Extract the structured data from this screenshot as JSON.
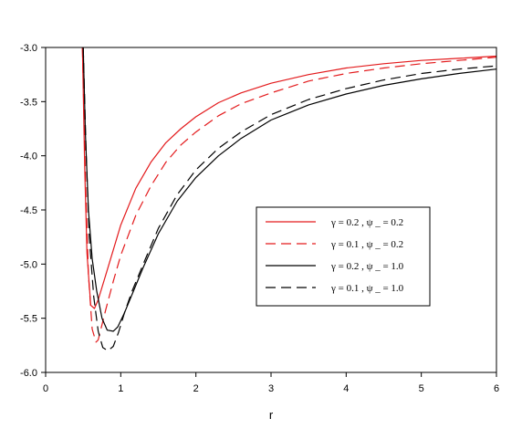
{
  "chart_data": {
    "type": "line",
    "title": "",
    "xlabel": "r",
    "ylabel": "",
    "xlim": [
      0,
      6
    ],
    "ylim": [
      -6.0,
      -3.0
    ],
    "xticks": [
      0,
      1,
      2,
      3,
      4,
      5,
      6
    ],
    "xtick_labels": [
      "0",
      "1",
      "2",
      "3",
      "4",
      "5",
      "6"
    ],
    "yticks": [
      -6.0,
      -5.5,
      -5.0,
      -4.5,
      -4.0,
      -3.5,
      -3.0
    ],
    "ytick_labels": [
      "-6.0",
      "-5.5",
      "-5.0",
      "-4.5",
      "-4.0",
      "-3.5",
      "-3.0"
    ],
    "grid": false,
    "legend_position": "center-right",
    "series": [
      {
        "name": "γ = 0.2 , ψ _ = 0.2",
        "color": "#e31a1c",
        "dash": "solid",
        "x": [
          0.49,
          0.52,
          0.55,
          0.6,
          0.65,
          0.7,
          0.8,
          0.9,
          1.0,
          1.2,
          1.4,
          1.6,
          1.8,
          2.0,
          2.3,
          2.6,
          3.0,
          3.5,
          4.0,
          4.5,
          5.0,
          5.5,
          6.0
        ],
        "y": [
          -3.0,
          -4.1,
          -4.9,
          -5.38,
          -5.41,
          -5.33,
          -5.1,
          -4.87,
          -4.64,
          -4.3,
          -4.06,
          -3.88,
          -3.75,
          -3.64,
          -3.51,
          -3.42,
          -3.33,
          -3.25,
          -3.19,
          -3.15,
          -3.12,
          -3.1,
          -3.08
        ]
      },
      {
        "name": "γ = 0.1 , ψ _ = 0.2",
        "color": "#e31a1c",
        "dash": "dashed",
        "x": [
          0.49,
          0.53,
          0.57,
          0.62,
          0.67,
          0.7,
          0.8,
          0.9,
          1.0,
          1.2,
          1.4,
          1.6,
          1.8,
          2.0,
          2.3,
          2.6,
          3.0,
          3.5,
          4.0,
          4.5,
          5.0,
          5.5,
          6.0
        ],
        "y": [
          -3.0,
          -4.2,
          -5.1,
          -5.6,
          -5.72,
          -5.7,
          -5.42,
          -5.16,
          -4.92,
          -4.55,
          -4.28,
          -4.06,
          -3.9,
          -3.78,
          -3.63,
          -3.52,
          -3.42,
          -3.31,
          -3.24,
          -3.19,
          -3.15,
          -3.12,
          -3.09
        ]
      },
      {
        "name": "γ = 0.2 , ψ _ = 1.0",
        "color": "#000000",
        "dash": "solid",
        "x": [
          0.5,
          0.53,
          0.57,
          0.62,
          0.68,
          0.75,
          0.82,
          0.9,
          0.96,
          1.05,
          1.15,
          1.3,
          1.5,
          1.75,
          2.0,
          2.3,
          2.6,
          3.0,
          3.5,
          4.0,
          4.5,
          5.0,
          5.5,
          6.0
        ],
        "y": [
          -3.0,
          -3.8,
          -4.5,
          -4.95,
          -5.25,
          -5.5,
          -5.61,
          -5.62,
          -5.58,
          -5.45,
          -5.28,
          -5.03,
          -4.72,
          -4.42,
          -4.2,
          -4.0,
          -3.84,
          -3.67,
          -3.53,
          -3.43,
          -3.35,
          -3.29,
          -3.24,
          -3.2
        ]
      },
      {
        "name": "γ = 0.1 , ψ _ = 1.0",
        "color": "#000000",
        "dash": "dashed",
        "x": [
          0.5,
          0.54,
          0.58,
          0.64,
          0.7,
          0.76,
          0.83,
          0.9,
          0.97,
          1.05,
          1.15,
          1.3,
          1.5,
          1.75,
          2.0,
          2.3,
          2.6,
          3.0,
          3.5,
          4.0,
          4.5,
          5.0,
          5.5,
          6.0
        ],
        "y": [
          -3.0,
          -4.0,
          -4.75,
          -5.3,
          -5.62,
          -5.77,
          -5.8,
          -5.76,
          -5.63,
          -5.45,
          -5.25,
          -5.0,
          -4.67,
          -4.36,
          -4.13,
          -3.93,
          -3.78,
          -3.62,
          -3.48,
          -3.38,
          -3.3,
          -3.24,
          -3.2,
          -3.17
        ]
      }
    ]
  }
}
